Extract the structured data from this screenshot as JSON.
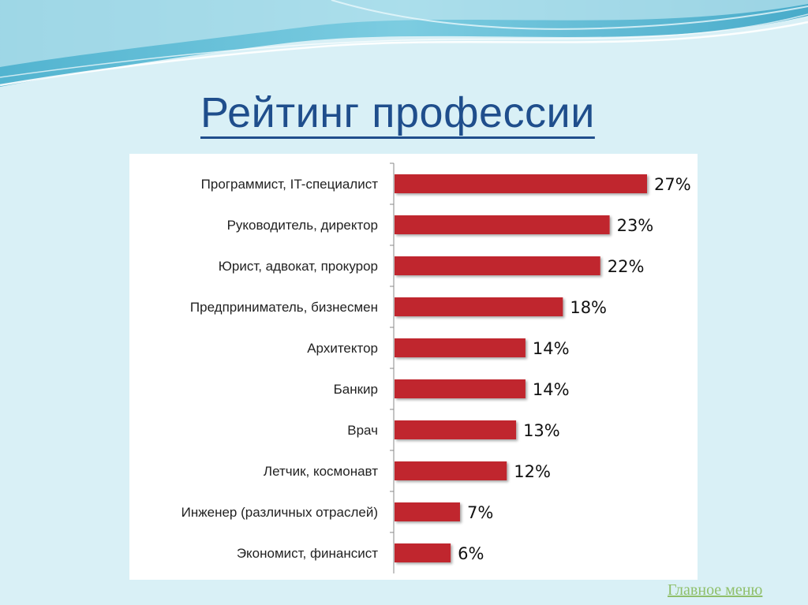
{
  "slide": {
    "title": "Рейтинг профессии",
    "main_menu_link": "Главное меню"
  },
  "colors": {
    "background": "#d9f0f6",
    "title": "#1f4e8c",
    "bar": "#c0282d",
    "link": "#8fbf6a"
  },
  "chart_data": {
    "type": "bar",
    "orientation": "horizontal",
    "title": "",
    "xlabel": "",
    "ylabel": "",
    "xlim": [
      0,
      27
    ],
    "grid": false,
    "legend": "none",
    "categories": [
      "Программист, IT-специалист",
      "Руководитель, директор",
      "Юрист, адвокат, прокурор",
      "Предприниматель, бизнесмен",
      "Архитектор",
      "Банкир",
      "Врач",
      "Летчик, космонавт",
      "Инженер (различных отраслей)",
      "Экономист, финансист"
    ],
    "values": [
      27,
      23,
      22,
      18,
      14,
      14,
      13,
      12,
      7,
      6
    ],
    "value_labels": [
      "27%",
      "23%",
      "22%",
      "18%",
      "14%",
      "14%",
      "13%",
      "12%",
      "7%",
      "6%"
    ]
  }
}
